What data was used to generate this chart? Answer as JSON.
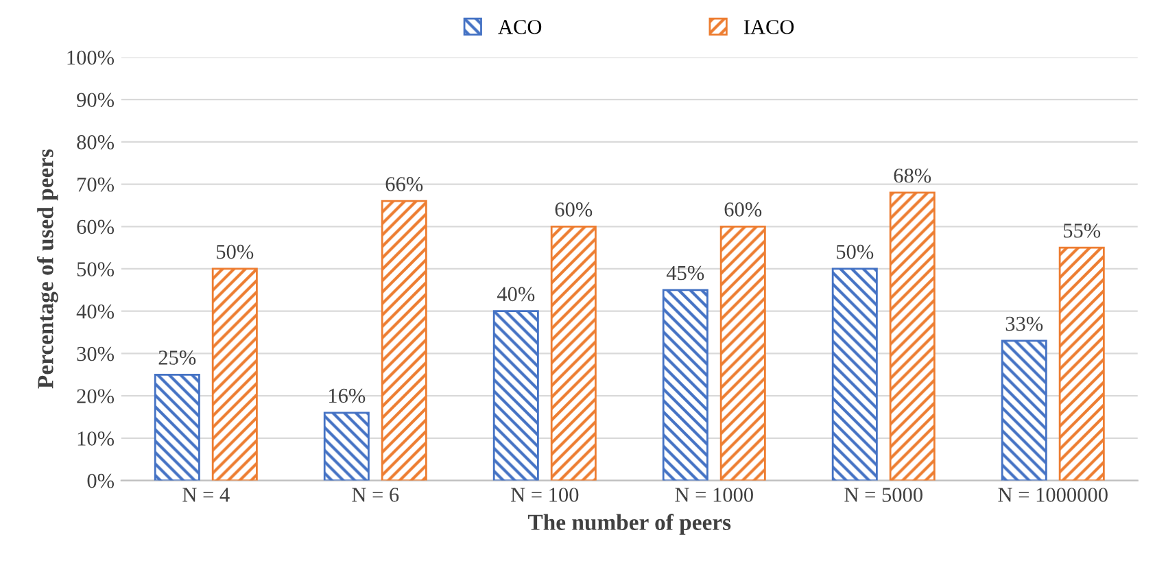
{
  "chart_data": {
    "type": "bar",
    "xlabel": "The number of peers",
    "ylabel": "Percentage of used peers",
    "categories": [
      "N = 4",
      "N = 6",
      "N = 100",
      "N = 1000",
      "N = 5000",
      "N = 1000000"
    ],
    "series": [
      {
        "name": "ACO",
        "color": "#4472c4",
        "values": [
          25,
          16,
          40,
          45,
          50,
          33
        ],
        "value_labels": [
          "25%",
          "16%",
          "40%",
          "45%",
          "50%",
          "33%"
        ]
      },
      {
        "name": "IACO",
        "color": "#ed7d31",
        "values": [
          50,
          66,
          60,
          60,
          68,
          55
        ],
        "value_labels": [
          "50%",
          "66%",
          "60%",
          "60%",
          "68%",
          "55%"
        ]
      }
    ],
    "ylim": [
      0,
      100
    ],
    "yticks": [
      {
        "value": 0,
        "label": "0%"
      },
      {
        "value": 10,
        "label": "10%"
      },
      {
        "value": 20,
        "label": "20%"
      },
      {
        "value": 30,
        "label": "30%"
      },
      {
        "value": 40,
        "label": "40%"
      },
      {
        "value": 50,
        "label": "50%"
      },
      {
        "value": 60,
        "label": "60%"
      },
      {
        "value": 70,
        "label": "70%"
      },
      {
        "value": 80,
        "label": "80%"
      },
      {
        "value": 90,
        "label": "90%"
      },
      {
        "value": 100,
        "label": "100%"
      }
    ],
    "grid": "y",
    "legend": "top"
  }
}
